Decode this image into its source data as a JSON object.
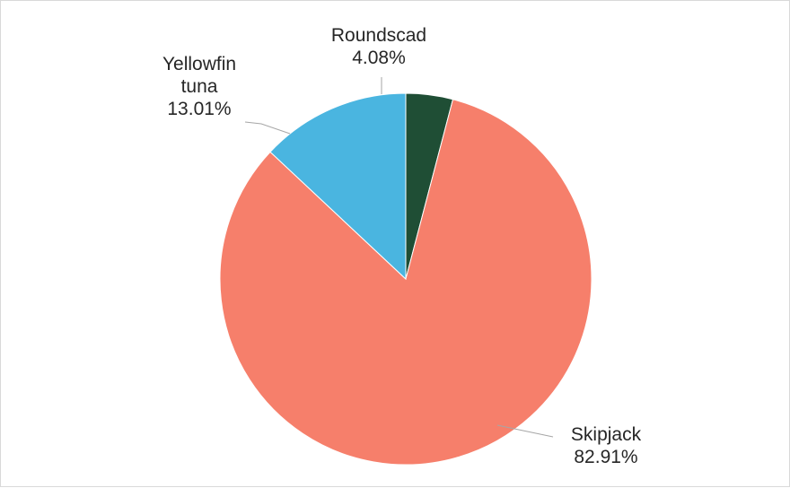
{
  "chart_data": {
    "type": "pie",
    "title": "",
    "slices": [
      {
        "label_lines": [
          "Roundscad"
        ],
        "value_label": "4.08%",
        "value": 4.08,
        "color": "#1f4e35"
      },
      {
        "label_lines": [
          "Skipjack"
        ],
        "value_label": "82.91%",
        "value": 82.91,
        "color": "#f67f6b"
      },
      {
        "label_lines": [
          "Yellowfin",
          "tuna"
        ],
        "value_label": "13.01%",
        "value": 13.01,
        "color": "#4ab5e0"
      }
    ],
    "start_angle_deg": 0,
    "direction": "clockwise",
    "legend": "none",
    "data_labels": "outside-with-leader-lines"
  }
}
